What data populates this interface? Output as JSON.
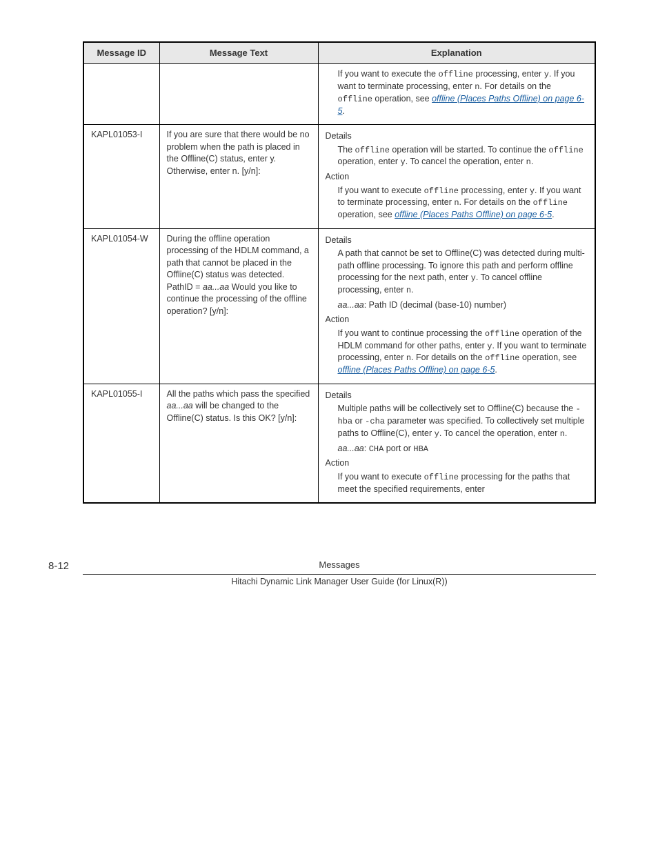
{
  "headers": {
    "col1": "Message ID",
    "col2": "Message Text",
    "col3": "Explanation"
  },
  "rows": [
    {
      "id": "",
      "text": "",
      "explanation_html": "<div class='indent'>If you want to execute the <span class='code'>offline</span> processing, enter <span class='code'>y</span>. If you want to terminate processing, enter <span class='code'>n</span>. For details on the <span class='code'>offline</span> operation, see <span class='link'>offline (Places Paths Offline) on page 6-5</span>.</div>"
    },
    {
      "id": "KAPL01053-I",
      "text": "If you are sure that there would be no problem when the path is placed in the Offline(C) status, enter y. Otherwise, enter n. [y/n]:",
      "explanation_html": "<div class='section-label'>Details</div><div class='indent'>The <span class='code'>offline</span> operation will be started. To continue the <span class='code'>offline</span> operation, enter <span class='code'>y</span>. To cancel the operation, enter <span class='code'>n</span>.</div><div class='section-label'>Action</div><div class='indent'>If you want to execute <span class='code'>offline</span> processing, enter <span class='code'>y</span>. If you want to terminate processing, enter <span class='code'>n</span>. For details on the <span class='code'>offline</span> operation, see <span class='link'>offline (Places Paths Offline) on page 6-5</span>.</div>"
    },
    {
      "id": "KAPL01054-W",
      "text_html": "During the offline operation processing of the HDLM command, a path that cannot be placed in the Offline(C) status was detected. PathID = <span class='italic'>aa...aa</span> Would you like to continue the processing of the offline operation? [y/n]:",
      "explanation_html": "<div class='section-label'>Details</div><div class='indent'>A path that cannot be set to Offline(C) was detected during multi-path offline processing. To ignore this path and perform offline processing for the next path, enter <span class='code'>y</span>. To cancel offline processing, enter <span class='code'>n</span>.</div><div class='indent'><span class='italic'>aa...aa</span>: Path ID (decimal (base-10) number)</div><div class='section-label'>Action</div><div class='indent'>If you want to continue processing the <span class='code'>offline</span> operation of the HDLM command for other paths, enter <span class='code'>y</span>. If you want to terminate processing, enter <span class='code'>n</span>. For details on the <span class='code'>offline</span> operation, see <span class='link'>offline (Places Paths Offline) on page 6-5</span>.</div>"
    },
    {
      "id": "KAPL01055-I",
      "text_html": "All the paths which pass the specified <span class='italic'>aa...aa</span> will be changed to the Offline(C) status. Is this OK? [y/n]:",
      "explanation_html": "<div class='section-label'>Details</div><div class='indent'>Multiple paths will be collectively set to Offline(C) because the <span class='code'>-hba</span> or <span class='code'>-cha</span> parameter was specified. To collectively set multiple paths to Offline(C), enter <span class='code'>y</span>. To cancel the operation, enter <span class='code'>n</span>.</div><div class='indent'><span class='italic'>aa...aa</span>: <span class='code'>CHA</span> port or <span class='code'>HBA</span></div><div class='section-label'>Action</div><div class='indent'>If you want to execute <span class='code'>offline</span> processing for the paths that meet the specified requirements, enter</div>"
    }
  ],
  "footer": {
    "page": "8-12",
    "title": "Messages",
    "subtitle": "Hitachi Dynamic Link Manager User Guide (for Linux(R))"
  }
}
